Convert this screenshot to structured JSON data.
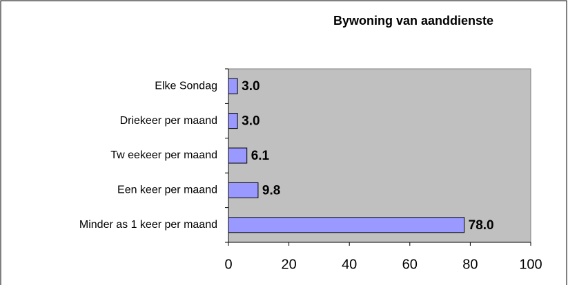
{
  "chart_data": {
    "type": "barh",
    "title": "Bywoning van aanddienste",
    "categories": [
      "Elke Sondag",
      "Driekeer per maand",
      "Tw eekeer per maand",
      "Een keer per maand",
      "Minder as 1 keer per maand"
    ],
    "values": [
      3.0,
      3.0,
      6.1,
      9.8,
      78.0
    ],
    "value_labels": [
      "3.0",
      "3.0",
      "6.1",
      "9.8",
      "78.0"
    ],
    "color": "#9999ff",
    "xlim": [
      0,
      100
    ],
    "xticks": [
      0,
      20,
      40,
      60,
      80,
      100
    ]
  }
}
